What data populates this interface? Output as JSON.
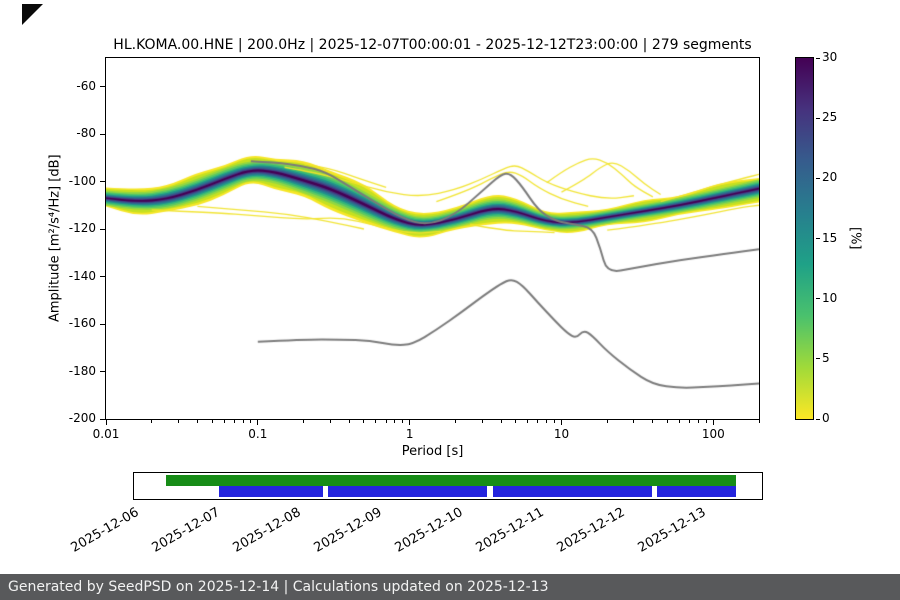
{
  "icons": {
    "corner": "menu-toggle-triangle"
  },
  "chart_data": {
    "type": "heatmap",
    "title": "HL.KOMA.00.HNE | 200.0Hz | 2025-12-07T00:00:01 - 2025-12-12T23:00:00 | 279 segments",
    "xlabel": "Period [s]",
    "ylabel": "Amplitude [m²/s⁴/Hz] [dB]",
    "xscale": "log",
    "grid": false,
    "xlim": [
      0.01,
      200
    ],
    "ylim": [
      -200,
      -48
    ],
    "xticks": [
      0.01,
      0.1,
      1,
      10,
      100
    ],
    "xtick_labels": [
      "0.01",
      "0.1",
      "1",
      "10",
      "100"
    ],
    "yticks": [
      -60,
      -80,
      -100,
      -120,
      -140,
      -160,
      -180,
      -200
    ],
    "colorbar": {
      "label": "[%]",
      "min": 0,
      "max": 30,
      "ticks": [
        0,
        5,
        10,
        15,
        20,
        25,
        30
      ],
      "colormap": "viridis",
      "stops_top_to_bottom": [
        "#440154",
        "#46327e",
        "#365c8d",
        "#277f8e",
        "#1fa187",
        "#4ac16d",
        "#a0da39",
        "#fde725"
      ]
    },
    "ppsd_band": {
      "comment": "probability density band: [period_s, mode_dB, half_spread_dB]",
      "points": [
        [
          0.01,
          -107,
          4.5
        ],
        [
          0.016,
          -108.5,
          5
        ],
        [
          0.025,
          -107.5,
          6
        ],
        [
          0.04,
          -103.5,
          6.5
        ],
        [
          0.06,
          -99,
          6.5
        ],
        [
          0.09,
          -95,
          5.5
        ],
        [
          0.13,
          -96,
          6.5
        ],
        [
          0.2,
          -99.5,
          7.5
        ],
        [
          0.3,
          -103,
          8.5
        ],
        [
          0.5,
          -109.5,
          8
        ],
        [
          0.8,
          -116,
          6
        ],
        [
          1.2,
          -119,
          4.5
        ],
        [
          2,
          -116,
          5
        ],
        [
          3.5,
          -111,
          6
        ],
        [
          5,
          -112.5,
          5.5
        ],
        [
          8,
          -117,
          4
        ],
        [
          12,
          -117.5,
          4
        ],
        [
          20,
          -115,
          4
        ],
        [
          35,
          -112.5,
          4
        ],
        [
          60,
          -110,
          4.5
        ],
        [
          110,
          -106.5,
          5
        ],
        [
          200,
          -103,
          5.5
        ]
      ],
      "layers": [
        {
          "f": 1.0,
          "color": "#f6e626"
        },
        {
          "f": 0.85,
          "color": "#c5e021"
        },
        {
          "f": 0.71,
          "color": "#93d741"
        },
        {
          "f": 0.58,
          "color": "#5ec962"
        },
        {
          "f": 0.47,
          "color": "#35b779"
        },
        {
          "f": 0.37,
          "color": "#21918c"
        },
        {
          "f": 0.28,
          "color": "#2c728e"
        },
        {
          "f": 0.2,
          "color": "#39568c"
        },
        {
          "f": 0.13,
          "color": "#46327e"
        },
        {
          "f": 0.07,
          "color": "#440154"
        }
      ]
    },
    "percentile_lines": {
      "color": "#7b7b7b",
      "upper": [
        [
          0.09,
          -91.5
        ],
        [
          0.13,
          -92
        ],
        [
          0.2,
          -93.5
        ],
        [
          0.28,
          -96
        ],
        [
          0.4,
          -102
        ],
        [
          0.6,
          -109
        ],
        [
          0.9,
          -115.5
        ],
        [
          1.3,
          -118.5
        ],
        [
          2,
          -114
        ],
        [
          3,
          -104
        ],
        [
          4,
          -97
        ],
        [
          4.6,
          -96.5
        ],
        [
          5.5,
          -102
        ],
        [
          7,
          -112
        ],
        [
          9,
          -116.5
        ],
        [
          12,
          -118
        ],
        [
          16,
          -119.5
        ],
        [
          18,
          -128
        ],
        [
          20,
          -138.5
        ],
        [
          30,
          -136.5
        ],
        [
          60,
          -133
        ],
        [
          120,
          -130.5
        ],
        [
          200,
          -128.5
        ]
      ],
      "lower": [
        [
          0.1,
          -167.5
        ],
        [
          0.2,
          -166.5
        ],
        [
          0.35,
          -166.5
        ],
        [
          0.55,
          -167
        ],
        [
          0.8,
          -169
        ],
        [
          1.05,
          -168.5
        ],
        [
          1.5,
          -162.5
        ],
        [
          2.2,
          -155
        ],
        [
          3,
          -148.5
        ],
        [
          4,
          -143
        ],
        [
          4.7,
          -141
        ],
        [
          5.5,
          -143.5
        ],
        [
          7,
          -151
        ],
        [
          9,
          -158.5
        ],
        [
          11,
          -164
        ],
        [
          12.5,
          -166
        ],
        [
          14,
          -162.5
        ],
        [
          16,
          -165
        ],
        [
          20,
          -171.5
        ],
        [
          28,
          -179
        ],
        [
          40,
          -185.5
        ],
        [
          60,
          -187
        ],
        [
          90,
          -186.5
        ],
        [
          130,
          -186
        ],
        [
          200,
          -185
        ]
      ]
    },
    "outlier_curves": {
      "color": "#f0e32a",
      "paths": [
        [
          [
            0.15,
            -94
          ],
          [
            0.25,
            -96.5
          ],
          [
            0.4,
            -100
          ],
          [
            0.7,
            -104.5
          ],
          [
            1.2,
            -106.5
          ],
          [
            2,
            -103.5
          ],
          [
            3,
            -99
          ],
          [
            4.2,
            -94.5
          ],
          [
            5,
            -93
          ],
          [
            6,
            -95.5
          ],
          [
            8,
            -100.5
          ],
          [
            12,
            -104.5
          ],
          [
            20,
            -107.5
          ],
          [
            30,
            -106
          ]
        ],
        [
          [
            1.5,
            -108.5
          ],
          [
            2.5,
            -103.5
          ],
          [
            3.5,
            -98.5
          ],
          [
            4.5,
            -95.5
          ],
          [
            5.5,
            -97.5
          ],
          [
            7,
            -102.5
          ],
          [
            10,
            -107.5
          ],
          [
            15,
            -110.5
          ]
        ],
        [
          [
            8,
            -100.5
          ],
          [
            10,
            -96
          ],
          [
            13,
            -92
          ],
          [
            16,
            -90
          ],
          [
            20,
            -92
          ],
          [
            25,
            -97
          ],
          [
            30,
            -102
          ],
          [
            40,
            -106.5
          ]
        ],
        [
          [
            10,
            -104.5
          ],
          [
            14,
            -99.5
          ],
          [
            18,
            -94
          ],
          [
            22,
            -91.5
          ],
          [
            28,
            -95.5
          ],
          [
            35,
            -101
          ],
          [
            45,
            -105.5
          ]
        ],
        [
          [
            45,
            -108.5
          ],
          [
            70,
            -105
          ],
          [
            100,
            -102
          ],
          [
            150,
            -99
          ],
          [
            200,
            -97
          ]
        ],
        [
          [
            0.2,
            -92.5
          ],
          [
            0.3,
            -94.5
          ],
          [
            0.45,
            -98.5
          ],
          [
            0.7,
            -102.5
          ]
        ],
        [
          [
            0.02,
            -112
          ],
          [
            0.05,
            -113
          ],
          [
            0.1,
            -114.5
          ],
          [
            0.2,
            -116
          ],
          [
            0.35,
            -115
          ],
          [
            0.6,
            -118.5
          ],
          [
            1,
            -122
          ],
          [
            1.6,
            -121
          ]
        ],
        [
          [
            0.04,
            -110.5
          ],
          [
            0.08,
            -112
          ],
          [
            0.15,
            -113.5
          ],
          [
            0.3,
            -117
          ],
          [
            0.5,
            -120
          ]
        ],
        [
          [
            20,
            -120.5
          ],
          [
            40,
            -118
          ],
          [
            80,
            -114.5
          ],
          [
            150,
            -111
          ],
          [
            200,
            -110
          ]
        ],
        [
          [
            2.5,
            -118
          ],
          [
            4,
            -120.5
          ],
          [
            6,
            -121
          ],
          [
            9,
            -121.5
          ]
        ]
      ]
    }
  },
  "timeline": {
    "dates": [
      "2025-12-06",
      "2025-12-07",
      "2025-12-08",
      "2025-12-09",
      "2025-12-10",
      "2025-12-11",
      "2025-12-12",
      "2025-12-13"
    ],
    "span_days": 7.75,
    "green_segments": [
      [
        0.4,
        7.43
      ]
    ],
    "blue_segments": [
      [
        1.05,
        2.33
      ],
      [
        2.4,
        4.36
      ],
      [
        4.43,
        6.39
      ],
      [
        6.46,
        7.43
      ]
    ],
    "colors": {
      "green": "#178c17",
      "blue": "#2424dd"
    }
  },
  "footer": {
    "text": "Generated by SeedPSD on 2025-12-14 | Calculations updated on 2025-12-13"
  }
}
